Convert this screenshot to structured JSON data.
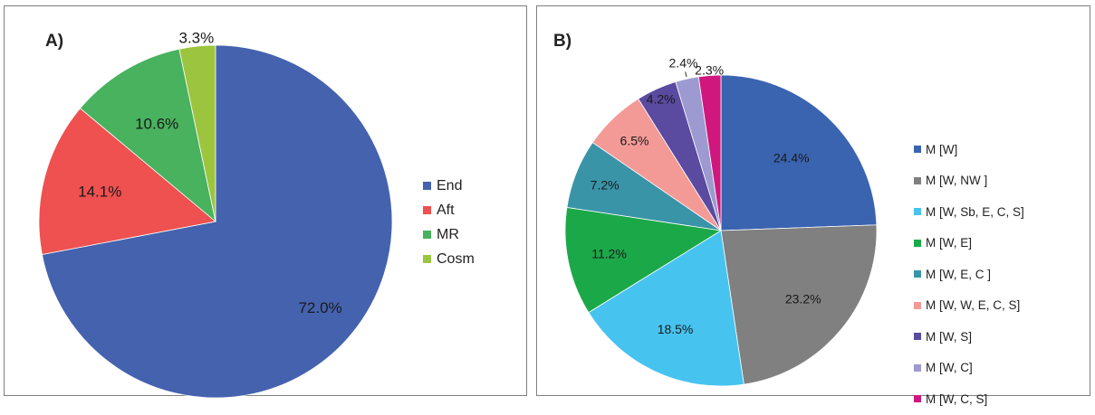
{
  "chart_data": [
    {
      "type": "pie",
      "panel_label": "A)",
      "categories": [
        "End",
        "Aft",
        "MR",
        "Cosm"
      ],
      "values": [
        72.0,
        14.1,
        10.6,
        3.3
      ],
      "labels": [
        "72.0%",
        "14.1%",
        "10.6%",
        "3.3%"
      ],
      "colors": [
        "#4462ad",
        "#ee5150",
        "#48b25e",
        "#9dc43f"
      ],
      "start_angle": "12 o'clock, clockwise",
      "legend_position": "right"
    },
    {
      "type": "pie",
      "panel_label": "B)",
      "categories": [
        "M [W]",
        "M [W, NW ]",
        "M [W, Sb, E, C, S]",
        "M [W, E]",
        "M [W, E, C ]",
        "M [W, W, E, C, S]",
        "M [W, S]",
        "M [W, C]",
        "M [W, C, S]"
      ],
      "values": [
        24.4,
        23.2,
        18.5,
        11.2,
        7.2,
        6.5,
        4.2,
        2.4,
        2.3
      ],
      "labels": [
        "24.4%",
        "23.2%",
        "18.5%",
        "11.2%",
        "7.2%",
        "6.5%",
        "4.2%",
        "2.4%",
        "2.3%"
      ],
      "colors": [
        "#3a64b0",
        "#808080",
        "#47c3f0",
        "#1ba849",
        "#3a94a8",
        "#f39a97",
        "#5a4aa0",
        "#9c9ad0",
        "#d0177e"
      ],
      "start_angle": "12 o'clock, clockwise",
      "legend_position": "right"
    }
  ]
}
